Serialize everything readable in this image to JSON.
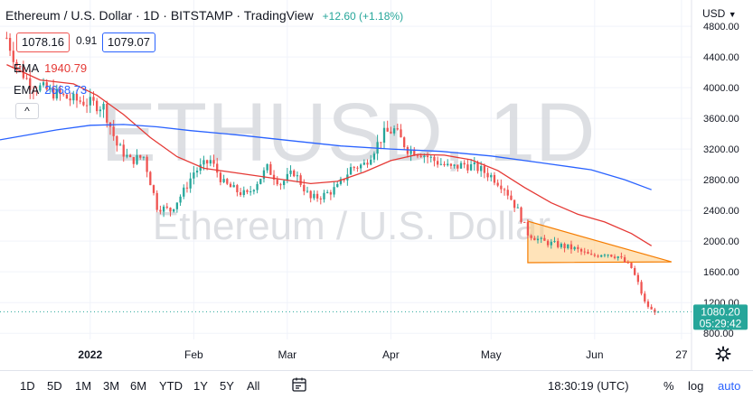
{
  "header": {
    "symbol_line": "Ethereum / U.S. Dollar · 1D · BITSTAMP · TradingView",
    "change": "+12.60 (+1.18%)",
    "sell_price": "1078.16",
    "spread": "0.91",
    "buy_price": "1079.07",
    "currency": "USD"
  },
  "legend": {
    "ema1_label": "EMA",
    "ema1_value": "1940.79",
    "ema2_label": "EMA",
    "ema2_value": "2668.73",
    "collapse_glyph": "^"
  },
  "watermark": {
    "symbol": "ETHUSD, 1D",
    "description": "Ethereum / U.S. Dollar"
  },
  "last_price": {
    "value": "1080.20",
    "countdown": "05:29:42"
  },
  "bottom_toolbar": {
    "ranges": [
      "1D",
      "5D",
      "1M",
      "3M",
      "6M",
      "YTD",
      "1Y",
      "5Y",
      "All"
    ],
    "time": "18:30:19 (UTC)",
    "percent": "%",
    "log": "log",
    "auto": "auto"
  },
  "icons": {
    "goto_date": "calendar-icon",
    "settings": "gear-icon",
    "collapse": "chevron-up-icon"
  },
  "colors": {
    "up": "#26a69a",
    "down": "#ef5350",
    "ema_fast": "#e53935",
    "ema_slow": "#2962ff",
    "triangle_fill": "#ffcc80",
    "triangle_stroke": "#f57c00",
    "last_price_bg": "#26a69a",
    "auto": "#2962ff"
  },
  "chart_data": {
    "type": "candlestick",
    "title": "Ethereum / U.S. Dollar · 1D · BITSTAMP · TradingView",
    "y_unit": "USD",
    "ylim": [
      720,
      4860
    ],
    "y_ticks": [
      4800,
      4400,
      4000,
      3600,
      3200,
      2800,
      2400,
      2000,
      1600,
      1200,
      800
    ],
    "x_ticks": [
      {
        "label": "2022",
        "day": 0
      },
      {
        "label": "Feb",
        "day": 31
      },
      {
        "label": "Mar",
        "day": 59
      },
      {
        "label": "Apr",
        "day": 90
      },
      {
        "label": "May",
        "day": 120
      },
      {
        "label": "Jun",
        "day": 151
      },
      {
        "label": "27",
        "day": 177
      }
    ],
    "xlim_days": [
      -27,
      180
    ],
    "grid": true,
    "price_path": [
      [
        -25,
        4650
      ],
      [
        -22,
        4300
      ],
      [
        -18,
        4050
      ],
      [
        -12,
        3950
      ],
      [
        -6,
        3850
      ],
      [
        0,
        3800
      ],
      [
        4,
        3750
      ],
      [
        8,
        3250
      ],
      [
        12,
        3050
      ],
      [
        16,
        3100
      ],
      [
        20,
        2450
      ],
      [
        24,
        2400
      ],
      [
        28,
        2650
      ],
      [
        31,
        2900
      ],
      [
        36,
        3050
      ],
      [
        40,
        2750
      ],
      [
        44,
        2650
      ],
      [
        47,
        2600
      ],
      [
        53,
        2950
      ],
      [
        57,
        2750
      ],
      [
        61,
        2900
      ],
      [
        66,
        2550
      ],
      [
        70,
        2600
      ],
      [
        74,
        2700
      ],
      [
        78,
        2950
      ],
      [
        82,
        3000
      ],
      [
        85,
        3200
      ],
      [
        88,
        3400
      ],
      [
        91,
        3450
      ],
      [
        95,
        3200
      ],
      [
        99,
        3150
      ],
      [
        103,
        3050
      ],
      [
        108,
        2950
      ],
      [
        112,
        3000
      ],
      [
        116,
        2950
      ],
      [
        120,
        2850
      ],
      [
        124,
        2700
      ],
      [
        128,
        2400
      ],
      [
        131,
        2100
      ],
      [
        135,
        2000
      ],
      [
        140,
        1950
      ],
      [
        145,
        1900
      ],
      [
        150,
        1800
      ],
      [
        154,
        1850
      ],
      [
        158,
        1800
      ],
      [
        162,
        1650
      ],
      [
        164,
        1450
      ],
      [
        166,
        1200
      ],
      [
        168,
        1100
      ],
      [
        170,
        1080
      ]
    ],
    "series": [
      {
        "name": "EMA",
        "value_label": "1940.79",
        "points": [
          [
            -25,
            4300
          ],
          [
            -15,
            4100
          ],
          [
            -5,
            4050
          ],
          [
            2,
            3900
          ],
          [
            10,
            3650
          ],
          [
            18,
            3350
          ],
          [
            26,
            3100
          ],
          [
            34,
            2950
          ],
          [
            42,
            2900
          ],
          [
            50,
            2850
          ],
          [
            58,
            2800
          ],
          [
            66,
            2750
          ],
          [
            74,
            2780
          ],
          [
            82,
            2900
          ],
          [
            90,
            3050
          ],
          [
            98,
            3130
          ],
          [
            106,
            3120
          ],
          [
            114,
            3060
          ],
          [
            122,
            2920
          ],
          [
            130,
            2700
          ],
          [
            138,
            2500
          ],
          [
            146,
            2350
          ],
          [
            154,
            2250
          ],
          [
            162,
            2100
          ],
          [
            168,
            1940
          ]
        ]
      },
      {
        "name": "EMA",
        "value_label": "2668.73",
        "points": [
          [
            -27,
            3320
          ],
          [
            -10,
            3450
          ],
          [
            0,
            3510
          ],
          [
            10,
            3520
          ],
          [
            20,
            3490
          ],
          [
            30,
            3440
          ],
          [
            45,
            3380
          ],
          [
            60,
            3310
          ],
          [
            75,
            3240
          ],
          [
            90,
            3200
          ],
          [
            105,
            3170
          ],
          [
            120,
            3110
          ],
          [
            135,
            3020
          ],
          [
            150,
            2930
          ],
          [
            160,
            2800
          ],
          [
            168,
            2670
          ]
        ]
      }
    ],
    "annotations": [
      {
        "type": "triangle",
        "points": [
          [
            131,
            2260
          ],
          [
            131,
            1720
          ],
          [
            174,
            1730
          ]
        ]
      }
    ],
    "last_price": 1080.2
  }
}
